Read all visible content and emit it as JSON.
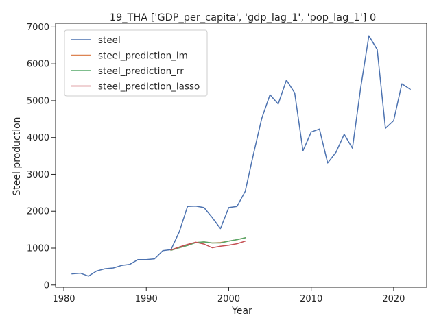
{
  "chart_data": {
    "type": "line",
    "title": "19_THA ['GDP_per_capita', 'gdp_lag_1', 'pop_lag_1'] 0",
    "xlabel": "Year",
    "ylabel": "Steel production",
    "xlim": [
      1979,
      2024
    ],
    "ylim": [
      -60,
      7100
    ],
    "xticks": [
      1980,
      1990,
      2000,
      2010,
      2020
    ],
    "yticks": [
      0,
      1000,
      2000,
      3000,
      4000,
      5000,
      6000,
      7000
    ],
    "grid": false,
    "legend_position": "top-left",
    "series": [
      {
        "name": "steel",
        "color": "#4c72b0",
        "x": [
          1981,
          1982,
          1983,
          1984,
          1985,
          1986,
          1987,
          1988,
          1989,
          1990,
          1991,
          1992,
          1993,
          1994,
          1995,
          1996,
          1997,
          1998,
          1999,
          2000,
          2001,
          2002,
          2003,
          2004,
          2005,
          2006,
          2007,
          2008,
          2009,
          2010,
          2011,
          2012,
          2013,
          2014,
          2015,
          2016,
          2017,
          2018,
          2019,
          2020,
          2021,
          2022
        ],
        "y": [
          300,
          320,
          240,
          380,
          440,
          460,
          530,
          560,
          690,
          690,
          710,
          930,
          960,
          1440,
          2130,
          2140,
          2100,
          1830,
          1530,
          2100,
          2130,
          2540,
          3550,
          4520,
          5160,
          4910,
          5560,
          5210,
          3640,
          4150,
          4230,
          3310,
          3600,
          4090,
          3710,
          5350,
          6760,
          6390,
          4250,
          4460,
          5460,
          5310
        ]
      },
      {
        "name": "steel_prediction_lm",
        "color": "#dd8452",
        "x": [
          1993,
          1994,
          1995,
          1996,
          1997,
          1998,
          1999,
          2000,
          2001,
          2002
        ],
        "y": [
          940,
          1010,
          1070,
          1150,
          1170,
          1140,
          1150,
          1190,
          1230,
          1280
        ]
      },
      {
        "name": "steel_prediction_rr",
        "color": "#55a868",
        "x": [
          1993,
          1994,
          1995,
          1996,
          1997,
          1998,
          1999,
          2000,
          2001,
          2002
        ],
        "y": [
          940,
          1010,
          1070,
          1150,
          1170,
          1140,
          1140,
          1190,
          1230,
          1280
        ]
      },
      {
        "name": "steel_prediction_lasso",
        "color": "#c44e52",
        "x": [
          1993,
          1994,
          1995,
          1996,
          1997,
          1998,
          1999,
          2000,
          2001,
          2002
        ],
        "y": [
          950,
          1030,
          1100,
          1160,
          1110,
          1010,
          1050,
          1080,
          1120,
          1190
        ]
      }
    ]
  }
}
